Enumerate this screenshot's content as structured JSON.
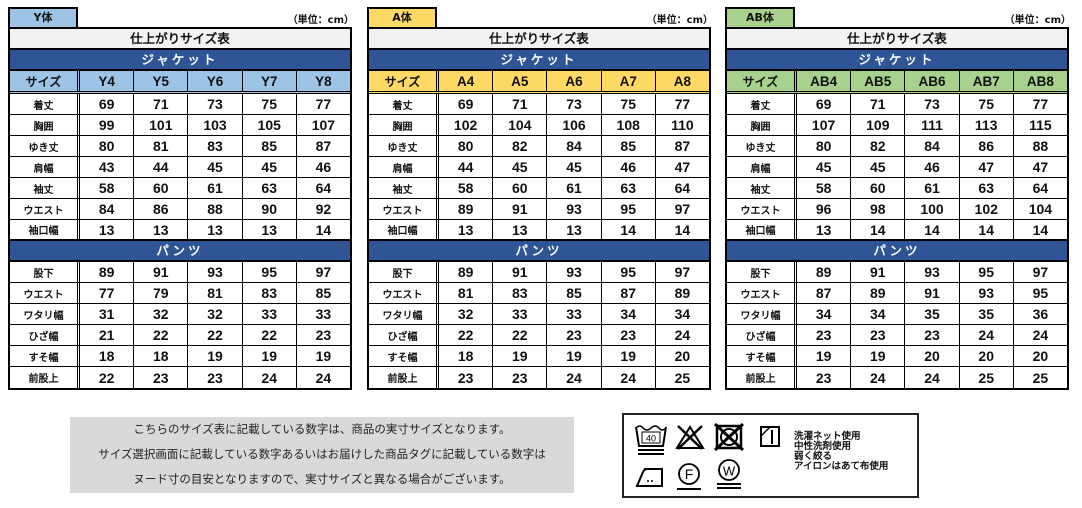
{
  "unit_label": "（単位：cm）",
  "chart_title": "仕上がりサイズ表",
  "section_jacket": "ジャケット",
  "section_pants": "パンツ",
  "size_label": "サイズ",
  "jacket_rows": [
    "着丈",
    "胸囲",
    "ゆき丈",
    "肩幅",
    "袖丈",
    "ウエスト",
    "袖口幅"
  ],
  "pants_rows": [
    "股下",
    "ウエスト",
    "ワタリ幅",
    "ひざ幅",
    "すそ幅",
    "前股上"
  ],
  "panels": [
    {
      "tag": "Y体",
      "color": "#9dc3e6",
      "sizes": [
        "Y4",
        "Y5",
        "Y6",
        "Y7",
        "Y8"
      ],
      "jacket": [
        [
          "69",
          "71",
          "73",
          "75",
          "77"
        ],
        [
          "99",
          "101",
          "103",
          "105",
          "107"
        ],
        [
          "80",
          "81",
          "83",
          "85",
          "87"
        ],
        [
          "43",
          "44",
          "45",
          "45",
          "46"
        ],
        [
          "58",
          "60",
          "61",
          "63",
          "64"
        ],
        [
          "84",
          "86",
          "88",
          "90",
          "92"
        ],
        [
          "13",
          "13",
          "13",
          "13",
          "14"
        ]
      ],
      "pants": [
        [
          "89",
          "91",
          "93",
          "95",
          "97"
        ],
        [
          "77",
          "79",
          "81",
          "83",
          "85"
        ],
        [
          "31",
          "32",
          "32",
          "33",
          "33"
        ],
        [
          "21",
          "22",
          "22",
          "22",
          "23"
        ],
        [
          "18",
          "18",
          "19",
          "19",
          "19"
        ],
        [
          "22",
          "23",
          "23",
          "24",
          "24"
        ]
      ]
    },
    {
      "tag": "A体",
      "color": "#ffd966",
      "sizes": [
        "A4",
        "A5",
        "A6",
        "A7",
        "A8"
      ],
      "jacket": [
        [
          "69",
          "71",
          "73",
          "75",
          "77"
        ],
        [
          "102",
          "104",
          "106",
          "108",
          "110"
        ],
        [
          "80",
          "82",
          "84",
          "85",
          "87"
        ],
        [
          "44",
          "45",
          "45",
          "46",
          "47"
        ],
        [
          "58",
          "60",
          "61",
          "63",
          "64"
        ],
        [
          "89",
          "91",
          "93",
          "95",
          "97"
        ],
        [
          "13",
          "13",
          "13",
          "14",
          "14"
        ]
      ],
      "pants": [
        [
          "89",
          "91",
          "93",
          "95",
          "97"
        ],
        [
          "81",
          "83",
          "85",
          "87",
          "89"
        ],
        [
          "32",
          "33",
          "33",
          "34",
          "34"
        ],
        [
          "22",
          "22",
          "23",
          "23",
          "24"
        ],
        [
          "18",
          "19",
          "19",
          "19",
          "20"
        ],
        [
          "23",
          "23",
          "24",
          "24",
          "25"
        ]
      ]
    },
    {
      "tag": "AB体",
      "color": "#a9d18e",
      "sizes": [
        "AB4",
        "AB5",
        "AB6",
        "AB7",
        "AB8"
      ],
      "jacket": [
        [
          "69",
          "71",
          "73",
          "75",
          "77"
        ],
        [
          "107",
          "109",
          "111",
          "113",
          "115"
        ],
        [
          "80",
          "82",
          "84",
          "86",
          "88"
        ],
        [
          "45",
          "45",
          "46",
          "47",
          "47"
        ],
        [
          "58",
          "60",
          "61",
          "63",
          "64"
        ],
        [
          "96",
          "98",
          "100",
          "102",
          "104"
        ],
        [
          "13",
          "14",
          "14",
          "14",
          "14"
        ]
      ],
      "pants": [
        [
          "89",
          "91",
          "93",
          "95",
          "97"
        ],
        [
          "87",
          "89",
          "91",
          "93",
          "95"
        ],
        [
          "34",
          "34",
          "35",
          "35",
          "36"
        ],
        [
          "23",
          "23",
          "23",
          "24",
          "24"
        ],
        [
          "19",
          "19",
          "20",
          "20",
          "20"
        ],
        [
          "23",
          "24",
          "24",
          "25",
          "25"
        ]
      ]
    }
  ],
  "note_lines": [
    "こちらのサイズ表に記載している数字は、商品の実寸サイズとなります。",
    "サイズ選択画面に記載している数字あるいはお届けした商品タグに記載している数字は",
    "ヌード寸の目安となりますので、実寸サイズと異なる場合がございます。"
  ],
  "care": {
    "icons": [
      "wash-40-gentle-icon",
      "no-bleach-icon",
      "no-tumble-dry-icon",
      "line-dry-shade-icon",
      "iron-low-icon",
      "dry-clean-f-icon",
      "wet-clean-w-icon"
    ],
    "wash_temp": "40",
    "lines": [
      "洗濯ネット使用",
      "中性洗剤使用",
      "弱く絞る",
      "アイロンはあて布使用"
    ]
  }
}
